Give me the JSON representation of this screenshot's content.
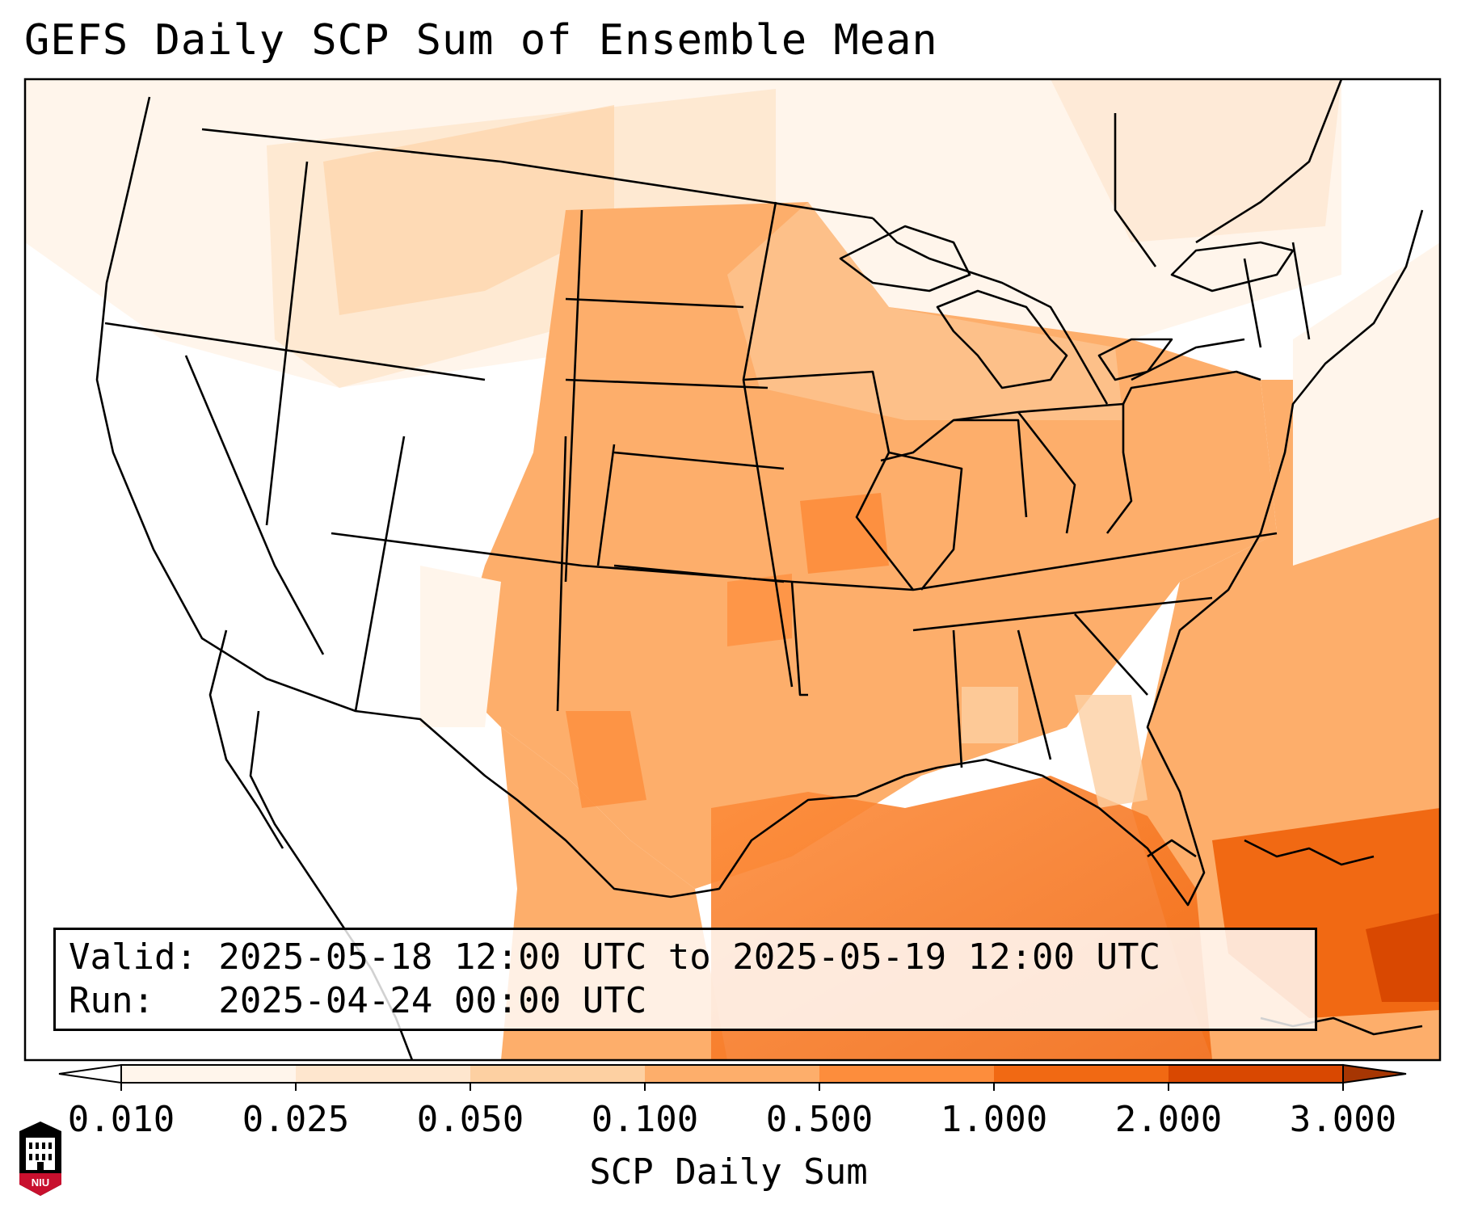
{
  "title": "GEFS Daily SCP Sum of Ensemble Mean",
  "info": {
    "valid_line": "Valid: 2025-05-18 12:00 UTC to 2025-05-19 12:00 UTC",
    "run_line": "Run:   2025-04-24 00:00 UTC"
  },
  "colorbar": {
    "label": "SCP Daily Sum",
    "ticks": [
      "0.010",
      "0.025",
      "0.050",
      "0.100",
      "0.500",
      "1.000",
      "2.000",
      "3.000"
    ],
    "colors": [
      "#fff5eb",
      "#fee6ce",
      "#fdd0a2",
      "#fdae6b",
      "#fd8d3c",
      "#f16913",
      "#d94801"
    ],
    "under_color": "#ffffff",
    "over_color": "#a63603",
    "extend": "both"
  },
  "map": {
    "region": "CONUS",
    "projection": "Lambert Conformal",
    "field": "SCP daily sum",
    "background_color": "#ffffff",
    "border_color": "#000000"
  },
  "logo": {
    "text": "NIU",
    "colors": [
      "#c8102e",
      "#000000"
    ]
  }
}
